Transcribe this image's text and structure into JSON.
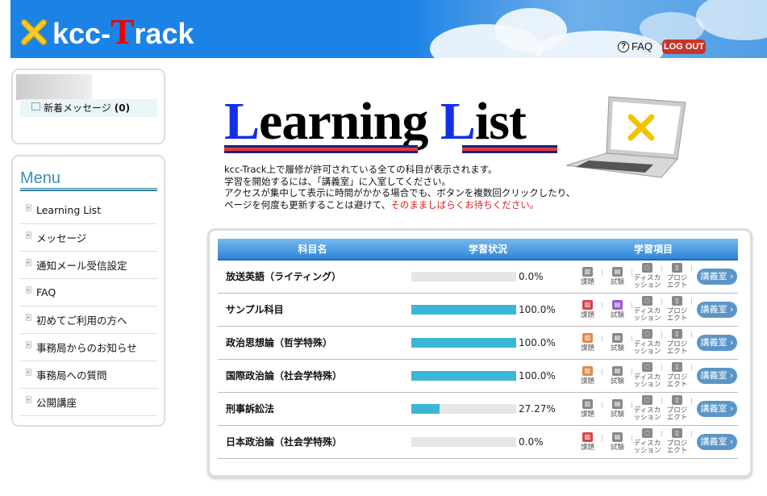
{
  "header": {
    "logo_prefix": "kcc-",
    "logo_t": "T",
    "logo_suffix": "rack",
    "faq": "FAQ",
    "logout": "LOG OUT"
  },
  "user": {
    "new_messages_label": "新着メッセージ",
    "new_messages_count": "(0)"
  },
  "menu": {
    "title": "Menu",
    "items": [
      {
        "label": "Learning List"
      },
      {
        "label": "メッセージ"
      },
      {
        "label": "通知メール受信設定"
      },
      {
        "label": "FAQ"
      },
      {
        "label": "初めてご利用の方へ"
      },
      {
        "label": "事務局からのお知らせ"
      },
      {
        "label": "事務局への質問"
      },
      {
        "label": "公開講座"
      }
    ]
  },
  "main": {
    "title_cap1": "L",
    "title_rest1": "earning",
    "title_cap2": "L",
    "title_rest2": "ist",
    "intro": {
      "line1": "kcc-Track上で履修が許可されている全ての科目が表示されます。",
      "line2": "学習を開始するには、「講義室」に入室してください。",
      "line3": "アクセスが集中して表示に時間がかかる場合でも、ボタンを複数回クリックしたり、",
      "line4a": "ページを何度も更新することは避けて、",
      "line4b": "そのまましばらくお待ちください。"
    },
    "table": {
      "headers": [
        "科目名",
        "学習状況",
        "学習項目"
      ],
      "item_labels": {
        "kadai": "課題",
        "test": "試験",
        "discussion": "ディスカ\nッション",
        "project": "プロジ\nエクト"
      },
      "enter_label": "講義室",
      "rows": [
        {
          "name": "放送英語（ライティング）",
          "progress": 0.0,
          "progress_text": "0.0%",
          "kadai_color": "#888888",
          "test_color": "#888888"
        },
        {
          "name": "サンプル科目",
          "progress": 100.0,
          "progress_text": "100.0%",
          "kadai_color": "#d9434a",
          "test_color": "#9a5bd0"
        },
        {
          "name": "政治思想論（哲学特殊）",
          "progress": 100.0,
          "progress_text": "100.0%",
          "kadai_color": "#e08a4a",
          "test_color": "#888888"
        },
        {
          "name": "国際政治論（社会学特殊）",
          "progress": 100.0,
          "progress_text": "100.0%",
          "kadai_color": "#e08a4a",
          "test_color": "#888888"
        },
        {
          "name": "刑事訴訟法",
          "progress": 27.27,
          "progress_text": "27.27%",
          "kadai_color": "#888888",
          "test_color": "#888888"
        },
        {
          "name": "日本政治論（社会学特殊）",
          "progress": 0.0,
          "progress_text": "0.0%",
          "kadai_color": "#d9434a",
          "test_color": "#888888"
        }
      ]
    }
  }
}
